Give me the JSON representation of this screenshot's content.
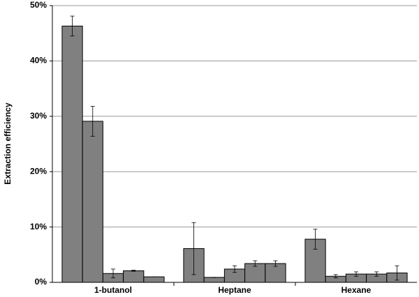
{
  "chart_data": {
    "type": "bar",
    "ylabel": "Extraction efficiency",
    "categories": [
      "1-butanol",
      "Heptane",
      "Hexane"
    ],
    "series": [
      {
        "color": "#808080",
        "values": [
          46.3,
          6.1,
          7.8
        ],
        "errors": [
          1.8,
          4.7,
          1.8
        ]
      },
      {
        "color": "#808080",
        "values": [
          29.1,
          0.9,
          1.1
        ],
        "errors": [
          2.7,
          0,
          0.3
        ]
      },
      {
        "color": "#808080",
        "values": [
          1.6,
          2.4,
          1.5
        ],
        "errors": [
          0.8,
          0.6,
          0.4
        ]
      },
      {
        "color": "#808080",
        "values": [
          2.1,
          3.4,
          1.5
        ],
        "errors": [
          0.1,
          0.5,
          0.4
        ]
      },
      {
        "color": "#808080",
        "values": [
          1.0,
          3.4,
          1.7
        ],
        "errors": [
          0,
          0.5,
          1.3
        ]
      }
    ],
    "ylim": [
      0,
      50
    ],
    "yticks": [
      {
        "value": 0,
        "label": "0%"
      },
      {
        "value": 10,
        "label": "10%"
      },
      {
        "value": 20,
        "label": "20%"
      },
      {
        "value": 30,
        "label": "30%"
      },
      {
        "value": 40,
        "label": "40%"
      },
      {
        "value": 50,
        "label": "50%"
      }
    ],
    "grid": true
  }
}
